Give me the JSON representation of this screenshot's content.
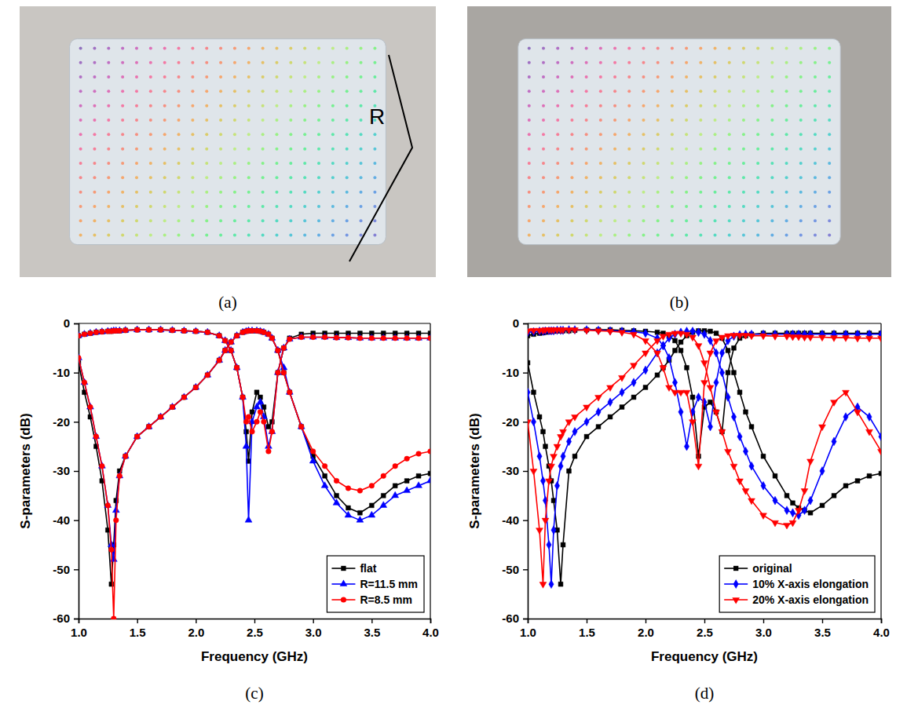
{
  "photos": [
    {
      "label": "(a)",
      "annotation": "R"
    },
    {
      "label": "(b)"
    }
  ],
  "chart_data": [
    {
      "type": "line",
      "panel": "(c)",
      "x_label": "Frequency (GHz)",
      "y_label": "S-parameters (dB)",
      "xlim": [
        1.0,
        4.0
      ],
      "ylim": [
        -60,
        0
      ],
      "xticks": [
        {
          "value": 1.0,
          "label": "1.0"
        },
        1.5,
        {
          "value": 2.0,
          "label": "2.0"
        },
        2.5,
        {
          "value": 3.0,
          "label": "3.0"
        },
        3.5,
        {
          "value": 4.0,
          "label": "4.0"
        }
      ],
      "yticks": [
        0,
        -10,
        -20,
        -30,
        -40,
        -50,
        -60
      ],
      "legend": "lower right",
      "x": [
        1.0,
        1.05,
        1.1,
        1.15,
        1.2,
        1.25,
        1.28,
        1.3,
        1.32,
        1.35,
        1.4,
        1.5,
        1.6,
        1.7,
        1.8,
        1.9,
        2.0,
        2.1,
        2.2,
        2.25,
        2.3,
        2.35,
        2.4,
        2.43,
        2.45,
        2.48,
        2.52,
        2.55,
        2.58,
        2.62,
        2.65,
        2.7,
        2.75,
        2.8,
        2.9,
        3.0,
        3.1,
        3.2,
        3.3,
        3.4,
        3.5,
        3.6,
        3.7,
        3.8,
        3.9,
        4.0
      ],
      "series": [
        {
          "name": "flat",
          "color": "#000000",
          "marker": "square",
          "values": [
            -8,
            -14,
            -19,
            -25,
            -32,
            -42,
            -53,
            -45,
            -36,
            -30,
            -27,
            -23,
            -21,
            -19,
            -17,
            -15,
            -13,
            -10.5,
            -7.5,
            -5.5,
            -3.8,
            -2.5,
            -1.8,
            -1.6,
            -1.5,
            -1.5,
            -1.5,
            -1.6,
            -1.8,
            -2.2,
            -3,
            -5.5,
            -10,
            -14,
            -21,
            -27,
            -31,
            -35,
            -37.5,
            -38.5,
            -37,
            -35,
            -33,
            -32,
            -31,
            -30.5
          ]
        },
        {
          "color": "#000000",
          "marker": "square",
          "values": [
            -2.5,
            -2.2,
            -2,
            -1.8,
            -1.7,
            -1.6,
            -1.6,
            -1.5,
            -1.5,
            -1.5,
            -1.4,
            -1.3,
            -1.3,
            -1.3,
            -1.4,
            -1.5,
            -1.6,
            -1.8,
            -2.5,
            -3.5,
            -5.5,
            -9,
            -15,
            -22,
            -28,
            -18,
            -14,
            -15,
            -17,
            -21,
            -20,
            -10,
            -5,
            -3,
            -2.2,
            -2,
            -2,
            -2,
            -2,
            -2,
            -2,
            -2,
            -2,
            -2,
            -2,
            -2
          ]
        },
        {
          "name": "R=11.5 mm",
          "color": "#0000ff",
          "marker": "triangle",
          "values": [
            -7,
            -12,
            -17,
            -23,
            -29,
            -37,
            -45,
            -48,
            -38,
            -31,
            -27,
            -23,
            -21,
            -19,
            -17,
            -15,
            -13,
            -10.5,
            -7.5,
            -5.5,
            -3.8,
            -2.5,
            -1.8,
            -1.6,
            -1.5,
            -1.5,
            -1.5,
            -1.6,
            -1.8,
            -2.2,
            -3,
            -5.5,
            -9,
            -14,
            -21,
            -28,
            -33,
            -36.5,
            -39,
            -40,
            -39,
            -37,
            -35,
            -34,
            -33,
            -32
          ]
        },
        {
          "color": "#0000ff",
          "marker": "triangle",
          "values": [
            -2.5,
            -2.2,
            -2,
            -1.8,
            -1.7,
            -1.6,
            -1.6,
            -1.5,
            -1.5,
            -1.5,
            -1.4,
            -1.3,
            -1.3,
            -1.3,
            -1.4,
            -1.5,
            -1.6,
            -1.8,
            -2.5,
            -3.5,
            -5.5,
            -9,
            -15,
            -25,
            -40,
            -20,
            -17,
            -16,
            -19,
            -25,
            -22,
            -10,
            -5,
            -3.2,
            -2.8,
            -2.8,
            -2.8,
            -2.9,
            -2.9,
            -3,
            -3,
            -3,
            -3,
            -3,
            -3,
            -3
          ]
        },
        {
          "name": "R=8.5 mm",
          "color": "#ff0000",
          "marker": "circle",
          "values": [
            -7,
            -12,
            -17,
            -23,
            -29,
            -37,
            -46,
            -60,
            -40,
            -31,
            -27,
            -23,
            -21,
            -19,
            -17,
            -15,
            -13,
            -10.5,
            -7.5,
            -5.5,
            -3.8,
            -2.5,
            -1.8,
            -1.6,
            -1.5,
            -1.5,
            -1.5,
            -1.6,
            -1.8,
            -2.2,
            -3,
            -5.5,
            -10,
            -14,
            -21,
            -26,
            -29,
            -32,
            -33.5,
            -34,
            -33,
            -31,
            -29,
            -27.5,
            -26.5,
            -26
          ]
        },
        {
          "color": "#ff0000",
          "marker": "circle",
          "values": [
            -2.5,
            -2.2,
            -2,
            -1.8,
            -1.7,
            -1.6,
            -1.6,
            -1.5,
            -1.5,
            -1.5,
            -1.4,
            -1.3,
            -1.3,
            -1.3,
            -1.4,
            -1.5,
            -1.6,
            -1.8,
            -2.5,
            -3.5,
            -5.5,
            -9,
            -15,
            -20,
            -19,
            -22,
            -20,
            -18,
            -20,
            -26,
            -22,
            -10,
            -5,
            -3.2,
            -2.8,
            -2.8,
            -2.8,
            -2.9,
            -2.9,
            -3,
            -3,
            -3,
            -3,
            -3,
            -3,
            -3
          ]
        }
      ]
    },
    {
      "type": "line",
      "panel": "(d)",
      "x_label": "Frequency (GHz)",
      "y_label": "S-parameters (dB)",
      "xlim": [
        1.0,
        4.0
      ],
      "ylim": [
        -60,
        0
      ],
      "xticks": [
        {
          "value": 1.0,
          "label": "1.0"
        },
        1.5,
        {
          "value": 2.0,
          "label": "2.0"
        },
        2.5,
        {
          "value": 3.0,
          "label": "3.0"
        },
        3.5,
        {
          "value": 4.0,
          "label": "4.0"
        }
      ],
      "yticks": [
        0,
        -10,
        -20,
        -30,
        -40,
        -50,
        -60
      ],
      "legend": "lower right",
      "x": [
        1.0,
        1.05,
        1.1,
        1.13,
        1.15,
        1.18,
        1.2,
        1.22,
        1.25,
        1.28,
        1.3,
        1.35,
        1.4,
        1.5,
        1.6,
        1.7,
        1.8,
        1.9,
        2.0,
        2.1,
        2.15,
        2.2,
        2.25,
        2.3,
        2.35,
        2.4,
        2.45,
        2.5,
        2.55,
        2.6,
        2.65,
        2.7,
        2.75,
        2.8,
        2.85,
        2.9,
        3.0,
        3.1,
        3.2,
        3.25,
        3.3,
        3.35,
        3.4,
        3.5,
        3.6,
        3.7,
        3.8,
        3.9,
        4.0
      ],
      "series": [
        {
          "name": "original",
          "color": "#000000",
          "marker": "square",
          "values": [
            -8,
            -14,
            -19,
            -22,
            -25,
            -29,
            -32,
            -36,
            -42,
            -53,
            -45,
            -30,
            -27,
            -23,
            -21,
            -19,
            -17,
            -15,
            -13,
            -10.5,
            -9,
            -7.5,
            -5.5,
            -3.8,
            -2.5,
            -1.8,
            -1.5,
            -1.5,
            -1.6,
            -2,
            -3,
            -5.5,
            -10,
            -14,
            -18,
            -21,
            -27,
            -31,
            -35,
            -36.5,
            -37.5,
            -38,
            -38.5,
            -37,
            -35,
            -33,
            -32,
            -31,
            -30.5
          ]
        },
        {
          "color": "#000000",
          "marker": "square",
          "values": [
            -2.5,
            -2.2,
            -2,
            -1.9,
            -1.8,
            -1.7,
            -1.6,
            -1.6,
            -1.5,
            -1.5,
            -1.5,
            -1.5,
            -1.4,
            -1.3,
            -1.3,
            -1.3,
            -1.4,
            -1.5,
            -1.6,
            -1.8,
            -2,
            -2.5,
            -3.5,
            -5.5,
            -9,
            -15,
            -27,
            -17,
            -16,
            -18,
            -22,
            -10,
            -5,
            -3,
            -2.5,
            -2.2,
            -2,
            -2,
            -2,
            -2,
            -2,
            -2,
            -2,
            -2,
            -2,
            -2,
            -2,
            -2,
            -2
          ]
        },
        {
          "name": "10% X-axis elongation",
          "color": "#0000ff",
          "marker": "diamond",
          "values": [
            -14,
            -20,
            -27,
            -32,
            -36,
            -45,
            -53,
            -42,
            -33,
            -29,
            -27,
            -24,
            -22,
            -20,
            -18,
            -16,
            -14,
            -12,
            -9.5,
            -6,
            -4.5,
            -3,
            -2.2,
            -1.8,
            -1.6,
            -1.6,
            -1.8,
            -2.2,
            -3.5,
            -6,
            -10,
            -15,
            -19,
            -23,
            -26,
            -29,
            -33,
            -36,
            -38,
            -38.5,
            -39,
            -38,
            -36,
            -30,
            -24,
            -19,
            -17,
            -19,
            -23
          ]
        },
        {
          "color": "#0000ff",
          "marker": "diamond",
          "values": [
            -1.8,
            -1.7,
            -1.6,
            -1.6,
            -1.5,
            -1.5,
            -1.5,
            -1.5,
            -1.4,
            -1.4,
            -1.4,
            -1.3,
            -1.3,
            -1.3,
            -1.4,
            -1.5,
            -1.6,
            -1.7,
            -2,
            -3,
            -4.5,
            -7,
            -12,
            -18,
            -25,
            -18,
            -15,
            -16,
            -21,
            -12,
            -6,
            -3.5,
            -2.6,
            -2.3,
            -2.2,
            -2.2,
            -2.2,
            -2.2,
            -2.2,
            -2.2,
            -2.2,
            -2.2,
            -2.2,
            -2.2,
            -2.2,
            -2.2,
            -2.2,
            -2.2,
            -2.2
          ]
        },
        {
          "name": "20% X-axis elongation",
          "color": "#ff0000",
          "marker": "triangle-down",
          "values": [
            -20,
            -30,
            -42,
            -53,
            -40,
            -32,
            -29,
            -27,
            -25,
            -23,
            -22,
            -20,
            -19,
            -17,
            -15,
            -13,
            -11,
            -8.5,
            -6,
            -3.5,
            -2.6,
            -2.2,
            -2,
            -2,
            -2.2,
            -2.8,
            -4.5,
            -8,
            -13,
            -18,
            -22,
            -26,
            -29,
            -32,
            -34,
            -36,
            -39,
            -40.5,
            -41,
            -40.5,
            -38,
            -34,
            -28,
            -21,
            -16,
            -14,
            -18,
            -22,
            -26
          ]
        },
        {
          "color": "#ff0000",
          "marker": "triangle-down",
          "values": [
            -1.5,
            -1.4,
            -1.4,
            -1.4,
            -1.3,
            -1.3,
            -1.3,
            -1.3,
            -1.3,
            -1.3,
            -1.3,
            -1.3,
            -1.3,
            -1.4,
            -1.5,
            -1.6,
            -1.8,
            -2.2,
            -3.5,
            -6,
            -9,
            -13,
            -14,
            -14,
            -14,
            -20,
            -29,
            -12,
            -6,
            -3.5,
            -2.8,
            -2.5,
            -2.4,
            -2.4,
            -2.4,
            -2.5,
            -2.5,
            -2.6,
            -2.6,
            -2.7,
            -2.7,
            -2.8,
            -2.8,
            -2.8,
            -2.9,
            -2.9,
            -3,
            -3,
            -3
          ]
        }
      ]
    }
  ]
}
